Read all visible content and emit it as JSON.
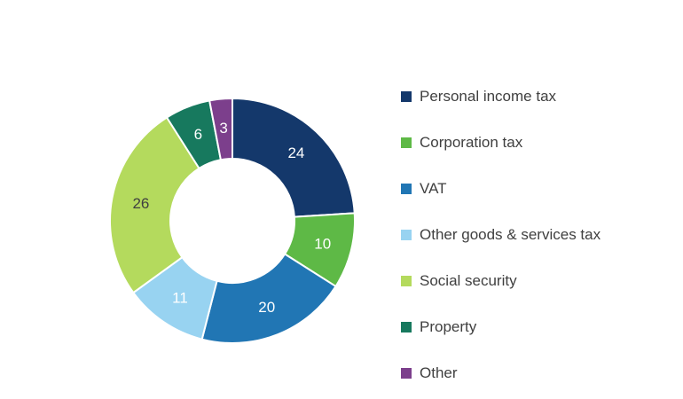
{
  "chart_data": {
    "type": "pie",
    "subtype": "donut",
    "title": "",
    "total": 100,
    "legend_position": "right",
    "background_color": "#ffffff",
    "separator_color": "#ffffff",
    "series": [
      {
        "name": "Personal income tax",
        "value": 24,
        "color": "#14386b",
        "label_color": "#ffffff"
      },
      {
        "name": "Corporation tax",
        "value": 10,
        "color": "#5eb946",
        "label_color": "#ffffff"
      },
      {
        "name": "VAT",
        "value": 20,
        "color": "#2176b4",
        "label_color": "#ffffff"
      },
      {
        "name": "Other goods & services tax",
        "value": 11,
        "color": "#98d3f1",
        "label_color": "#ffffff"
      },
      {
        "name": "Social security",
        "value": 26,
        "color": "#b4da5d",
        "label_color": "#404040"
      },
      {
        "name": "Property",
        "value": 6,
        "color": "#17795e",
        "label_color": "#ffffff"
      },
      {
        "name": "Other",
        "value": 3,
        "color": "#7c3f8c",
        "label_color": "#ffffff"
      }
    ]
  }
}
